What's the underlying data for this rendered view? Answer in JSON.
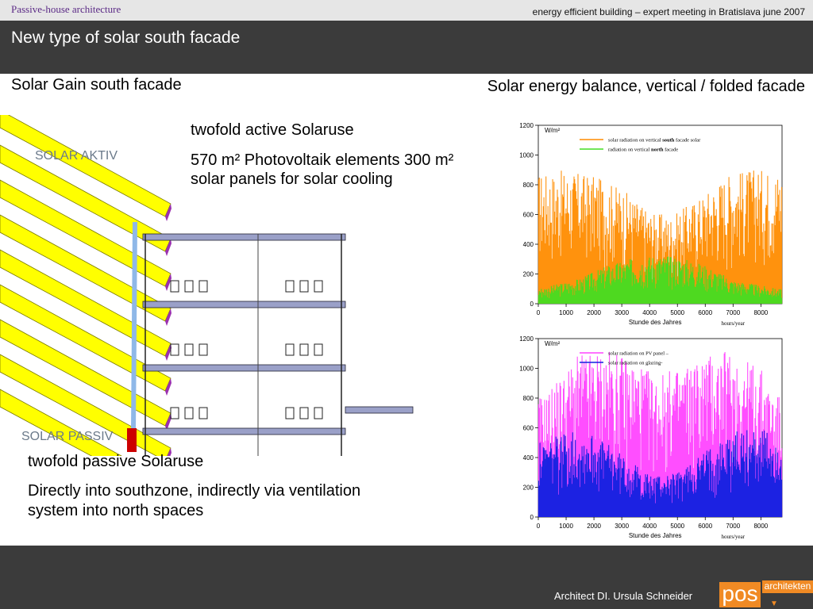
{
  "header": {
    "brand": "Passive-house architecture",
    "meeting": "energy efficient building – expert meeting in Bratislava june 2007",
    "title": "New type of solar south facade"
  },
  "left": {
    "heading": "Solar Gain south facade",
    "label_aktiv": "SOLAR AKTIV",
    "label_passiv": "SOLAR PASSIV",
    "active_text": [
      "twofold active Solaruse",
      "570 m² Photovoltaik elements 300 m² solar panels  for  solar cooling"
    ],
    "passive_text": [
      "twofold passive  Solaruse",
      "Directly into southzone, indirectly via ventilation system into north spaces"
    ]
  },
  "right": {
    "heading": "Solar energy balance, vertical / folded facade"
  },
  "footer": {
    "architect": "Architect  DI. Ursula Schneider",
    "logo_main": "pos",
    "logo_side": "architekten"
  },
  "chart_data": [
    {
      "type": "line",
      "ylabel": "W/m²",
      "xlabel": "Stunde des Jahres",
      "xlabel_secondary": "hours/year",
      "xlim": [
        0,
        8760
      ],
      "ylim": [
        0,
        1200
      ],
      "xticks": [
        0,
        1000,
        2000,
        3000,
        4000,
        5000,
        6000,
        7000,
        8000
      ],
      "yticks": [
        0,
        200,
        400,
        600,
        800,
        1000,
        1200
      ],
      "legend_position": "top",
      "series": [
        {
          "name_parts": [
            "solar radiation on vertical ",
            "south",
            " facade solar"
          ],
          "color": "#ff8c00",
          "profile": "south",
          "peaks": [
            [
              200,
              880
            ],
            [
              1000,
              900
            ],
            [
              2000,
              860
            ],
            [
              3000,
              780
            ],
            [
              4000,
              620
            ],
            [
              4800,
              590
            ],
            [
              5800,
              720
            ],
            [
              6800,
              880
            ],
            [
              7800,
              910
            ],
            [
              8600,
              900
            ]
          ]
        },
        {
          "name_parts": [
            "radiation on vertical ",
            "north",
            " facade"
          ],
          "color": "#44dd22",
          "profile": "north",
          "peaks": [
            [
              200,
              110
            ],
            [
              1500,
              170
            ],
            [
              2500,
              260
            ],
            [
              3500,
              310
            ],
            [
              4200,
              330
            ],
            [
              5000,
              320
            ],
            [
              6000,
              260
            ],
            [
              7000,
              160
            ],
            [
              8600,
              100
            ]
          ]
        }
      ]
    },
    {
      "type": "line",
      "ylabel": "W/m²",
      "xlabel": "Stunde des Jahres",
      "xlabel_secondary": "hours/year",
      "xlim": [
        0,
        8760
      ],
      "ylim": [
        0,
        1200
      ],
      "xticks": [
        0,
        1000,
        2000,
        3000,
        4000,
        5000,
        6000,
        7000,
        8000
      ],
      "yticks": [
        0,
        200,
        400,
        600,
        800,
        1000,
        1200
      ],
      "legend_position": "top",
      "series": [
        {
          "name_parts": [
            "solar radiation on PV panel –"
          ],
          "color": "#ff44ff",
          "profile": "pv",
          "peaks": [
            [
              200,
              820
            ],
            [
              1500,
              1100
            ],
            [
              2500,
              1120
            ],
            [
              3500,
              1050
            ],
            [
              4200,
              950
            ],
            [
              5000,
              1000
            ],
            [
              6000,
              1100
            ],
            [
              7000,
              1120
            ],
            [
              8000,
              1000
            ],
            [
              8600,
              820
            ]
          ]
        },
        {
          "name_parts": [
            "solar radiation on glazing-"
          ],
          "color": "#1020e0",
          "profile": "glazing",
          "peaks": [
            [
              200,
              500
            ],
            [
              1000,
              580
            ],
            [
              2000,
              560
            ],
            [
              3000,
              420
            ],
            [
              4000,
              280
            ],
            [
              5000,
              300
            ],
            [
              6000,
              450
            ],
            [
              7000,
              580
            ],
            [
              8000,
              600
            ],
            [
              8600,
              520
            ]
          ]
        }
      ]
    }
  ]
}
